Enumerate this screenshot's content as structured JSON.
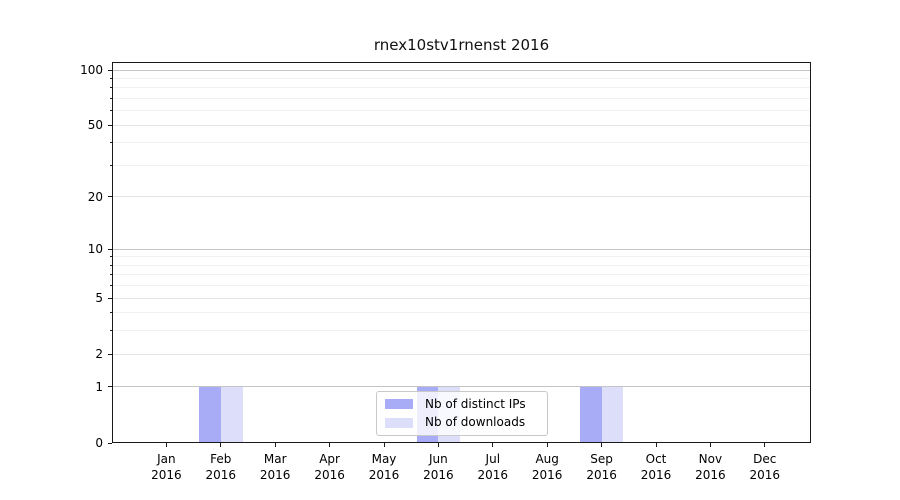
{
  "chart_data": {
    "type": "bar",
    "title": "rnex10stv1rnenst 2016",
    "xlabel": "",
    "ylabel": "",
    "x_categories": [
      {
        "month": "Jan",
        "year": "2016"
      },
      {
        "month": "Feb",
        "year": "2016"
      },
      {
        "month": "Mar",
        "year": "2016"
      },
      {
        "month": "Apr",
        "year": "2016"
      },
      {
        "month": "May",
        "year": "2016"
      },
      {
        "month": "Jun",
        "year": "2016"
      },
      {
        "month": "Jul",
        "year": "2016"
      },
      {
        "month": "Aug",
        "year": "2016"
      },
      {
        "month": "Sep",
        "year": "2016"
      },
      {
        "month": "Oct",
        "year": "2016"
      },
      {
        "month": "Nov",
        "year": "2016"
      },
      {
        "month": "Dec",
        "year": "2016"
      }
    ],
    "series": [
      {
        "name": "Nb of distinct IPs",
        "color": "#a8abf6",
        "values": [
          0,
          1,
          0,
          0,
          0,
          1,
          0,
          0,
          1,
          0,
          0,
          0
        ]
      },
      {
        "name": "Nb of downloads",
        "color": "#dcdefa",
        "values": [
          0,
          1,
          0,
          0,
          0,
          1,
          0,
          0,
          1,
          0,
          0,
          0
        ]
      }
    ],
    "y_axis": {
      "scale": "log1p",
      "ylim": [
        0,
        110
      ],
      "major_tick_values": [
        0,
        1,
        2,
        5,
        10,
        20,
        50,
        100
      ],
      "decade_tick_values": [
        1,
        10,
        100
      ],
      "minor_tick_values": [
        3,
        4,
        6,
        7,
        8,
        9,
        30,
        40,
        60,
        70,
        80,
        90
      ]
    },
    "legend": {
      "position": "lower center",
      "entries": [
        "Nb of distinct IPs",
        "Nb of downloads"
      ]
    },
    "grid": true,
    "bar_width_fraction": 0.4
  },
  "colors": {
    "bar_distinct_ips": "#a8abf6",
    "bar_downloads": "#dcdefa",
    "grid_decade": "#c4c4c4",
    "grid_mid": "#e4e4e4",
    "grid_minor": "#f1f1f1",
    "spine": "#1a1a1a",
    "text": "#000000"
  }
}
